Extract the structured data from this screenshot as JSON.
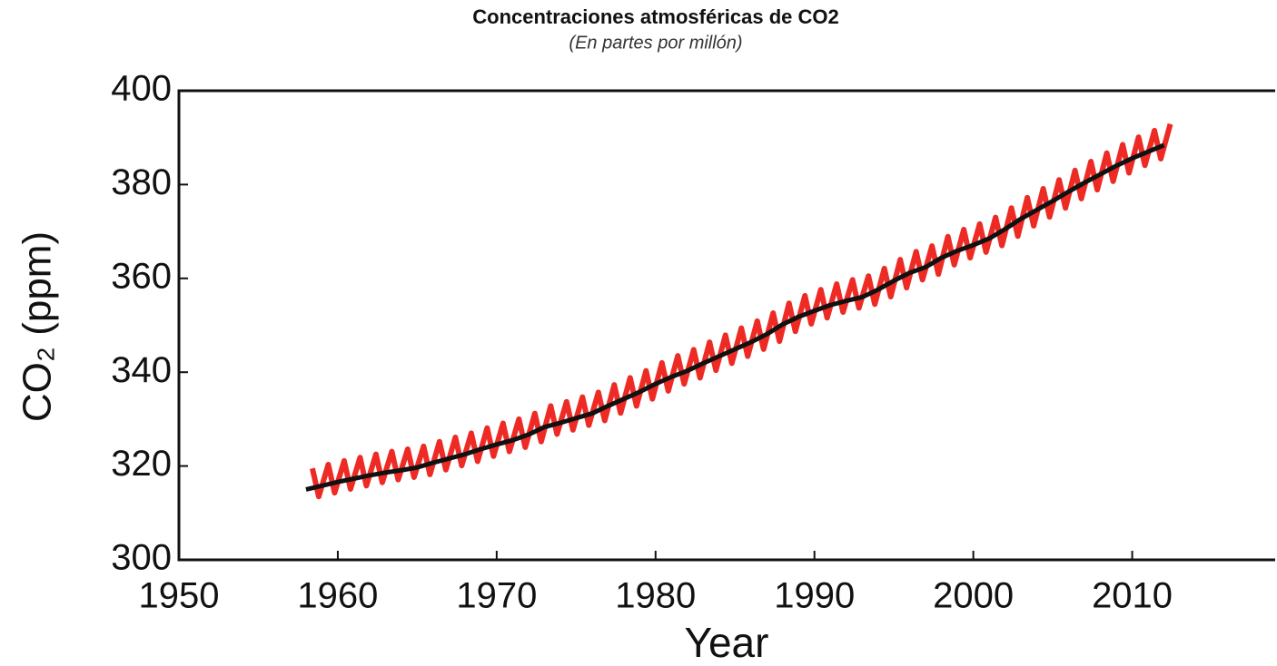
{
  "chart_data": {
    "type": "line",
    "title": "Concentraciones atmosféricas de CO2",
    "subtitle": "(En partes por millón)",
    "xlabel": "Year",
    "ylabel": "CO₂ (ppm)",
    "xlim": [
      1950,
      2019
    ],
    "xticks": [
      1950,
      1960,
      1970,
      1980,
      1990,
      2000,
      2010
    ],
    "ylim": [
      300,
      400
    ],
    "yticks": [
      300,
      320,
      340,
      360,
      380,
      400
    ],
    "series": [
      {
        "color": "#ee2a24",
        "x": [
          1958.4,
          1958.8,
          1959.4,
          1959.8,
          1960.4,
          1960.8,
          1961.4,
          1961.8,
          1962.4,
          1962.8,
          1963.4,
          1963.8,
          1964.4,
          1964.8,
          1965.4,
          1965.8,
          1966.4,
          1966.8,
          1967.4,
          1967.8,
          1968.4,
          1968.8,
          1969.4,
          1969.8,
          1970.4,
          1970.8,
          1971.4,
          1971.8,
          1972.4,
          1972.8,
          1973.4,
          1973.8,
          1974.4,
          1974.8,
          1975.4,
          1975.8,
          1976.4,
          1976.8,
          1977.4,
          1977.8,
          1978.4,
          1978.8,
          1979.4,
          1979.8,
          1980.4,
          1980.8,
          1981.4,
          1981.8,
          1982.4,
          1982.8,
          1983.4,
          1983.8,
          1984.4,
          1984.8,
          1985.4,
          1985.8,
          1986.4,
          1986.8,
          1987.4,
          1987.8,
          1988.4,
          1988.8,
          1989.4,
          1989.8,
          1990.4,
          1990.8,
          1991.4,
          1991.8,
          1992.4,
          1992.8,
          1993.4,
          1993.8,
          1994.4,
          1994.8,
          1995.4,
          1995.8,
          1996.4,
          1996.8,
          1997.4,
          1997.8,
          1998.4,
          1998.8,
          1999.4,
          1999.8,
          2000.4,
          2000.8,
          2001.4,
          2001.8,
          2002.4,
          2002.8,
          2003.4,
          2003.8,
          2004.4,
          2004.8,
          2005.4,
          2005.8,
          2006.4,
          2006.8,
          2007.4,
          2007.8,
          2008.4,
          2008.8,
          2009.4,
          2009.8,
          2010.4,
          2010.8,
          2011.4,
          2011.8,
          2012.4
        ],
        "values": [
          319.5,
          313.5,
          320.3,
          314.3,
          321.1,
          315.1,
          321.8,
          315.8,
          322.5,
          316.5,
          323.1,
          317.1,
          323.6,
          317.6,
          324.2,
          318.2,
          325.2,
          319.2,
          326.1,
          320.1,
          327.0,
          321.0,
          328.1,
          322.1,
          329.1,
          323.1,
          330.0,
          324.0,
          331.2,
          325.2,
          332.8,
          326.8,
          333.7,
          327.7,
          334.7,
          328.7,
          335.7,
          329.7,
          337.3,
          331.3,
          338.8,
          332.8,
          340.3,
          334.3,
          342.0,
          336.0,
          343.5,
          337.5,
          344.8,
          338.8,
          346.4,
          340.4,
          347.9,
          341.9,
          349.4,
          343.4,
          350.9,
          344.9,
          352.6,
          346.6,
          354.7,
          348.7,
          356.3,
          350.3,
          357.6,
          351.6,
          358.8,
          352.8,
          359.7,
          353.7,
          360.5,
          354.5,
          362.1,
          356.1,
          364.0,
          358.0,
          365.7,
          359.7,
          366.9,
          360.9,
          368.9,
          362.9,
          370.4,
          364.4,
          371.6,
          365.6,
          373.0,
          367.0,
          375.0,
          369.0,
          377.2,
          371.2,
          379.1,
          373.1,
          381.0,
          375.0,
          383.0,
          377.0,
          384.9,
          378.9,
          386.7,
          380.7,
          388.5,
          382.5,
          390.1,
          384.1,
          391.5,
          385.5,
          392.9
        ]
      },
      {
        "color": "#111111",
        "x": [
          1958,
          1959,
          1960,
          1961,
          1962,
          1963,
          1964,
          1965,
          1966,
          1967,
          1968,
          1969,
          1970,
          1971,
          1972,
          1973,
          1974,
          1975,
          1976,
          1977,
          1978,
          1979,
          1980,
          1981,
          1982,
          1983,
          1984,
          1985,
          1986,
          1987,
          1988,
          1989,
          1990,
          1991,
          1992,
          1993,
          1994,
          1995,
          1996,
          1997,
          1998,
          1999,
          2000,
          2001,
          2002,
          2003,
          2004,
          2005,
          2006,
          2007,
          2008,
          2009,
          2010,
          2011,
          2012
        ],
        "values": [
          315.0,
          315.8,
          316.6,
          317.3,
          318.0,
          318.6,
          319.1,
          319.7,
          320.7,
          321.6,
          322.5,
          323.6,
          324.6,
          325.5,
          326.7,
          328.3,
          329.2,
          330.2,
          331.2,
          332.8,
          334.3,
          335.8,
          337.5,
          339.0,
          340.3,
          341.9,
          343.4,
          344.9,
          346.4,
          348.1,
          350.2,
          351.8,
          353.1,
          354.3,
          355.2,
          356.0,
          357.6,
          359.5,
          361.2,
          362.4,
          364.4,
          365.9,
          367.1,
          368.5,
          370.5,
          372.7,
          374.6,
          376.5,
          378.5,
          380.4,
          382.2,
          384.0,
          385.6,
          387.0,
          388.4
        ]
      }
    ]
  }
}
